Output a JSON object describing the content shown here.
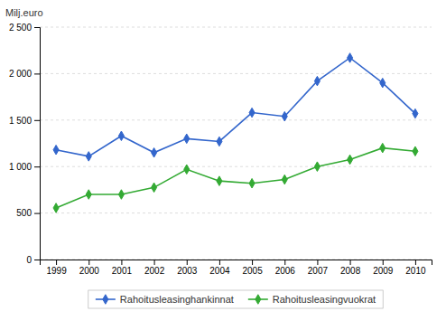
{
  "chart_data": {
    "type": "line",
    "y_label": "Milj.euro",
    "x": [
      1999,
      2000,
      2001,
      2002,
      2003,
      2004,
      2005,
      2006,
      2007,
      2008,
      2009,
      2010
    ],
    "xlim": [
      1998.5,
      2010.5
    ],
    "xticks": [
      1999,
      2000,
      2001,
      2002,
      2003,
      2004,
      2005,
      2006,
      2007,
      2008,
      2009,
      2010
    ],
    "ylim": [
      0,
      2500
    ],
    "yticks": [
      0,
      500,
      {
        "value": 1000,
        "label": "1 000"
      },
      {
        "value": 1500,
        "label": "1 500"
      },
      {
        "value": 2000,
        "label": "2 000"
      },
      {
        "value": 2500,
        "label": "2 500"
      }
    ],
    "grid": true,
    "legend": "bottom",
    "marker": "diamond",
    "series": [
      {
        "name": "Rahoitusleasinghankinnat",
        "color": "#3366cc",
        "values": [
          1180,
          1110,
          1330,
          1150,
          1300,
          1270,
          1580,
          1540,
          1920,
          2170,
          1900,
          1570
        ]
      },
      {
        "name": "Rahoitusleasingvuokrat",
        "color": "#33aa33",
        "values": [
          555,
          700,
          700,
          775,
          970,
          845,
          820,
          860,
          1000,
          1075,
          1200,
          1165
        ]
      }
    ]
  }
}
